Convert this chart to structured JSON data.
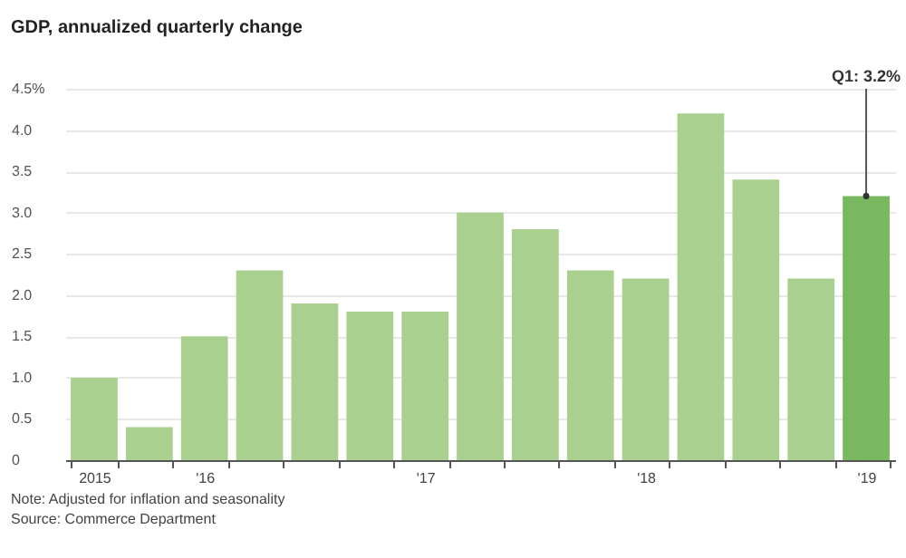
{
  "chart_data": {
    "type": "bar",
    "title": "GDP, annualized quarterly change",
    "categories": [
      "2015",
      null,
      "'16",
      null,
      null,
      null,
      "'17",
      null,
      null,
      null,
      "'18",
      null,
      null,
      null,
      "'19"
    ],
    "values": [
      1.0,
      0.4,
      1.5,
      2.3,
      1.9,
      1.8,
      1.8,
      3.0,
      2.8,
      2.3,
      2.2,
      4.2,
      3.4,
      2.2,
      3.2
    ],
    "colors": [
      "#a9d08e",
      "#a9d08e",
      "#a9d08e",
      "#a9d08e",
      "#a9d08e",
      "#a9d08e",
      "#a9d08e",
      "#a9d08e",
      "#a9d08e",
      "#a9d08e",
      "#a9d08e",
      "#a9d08e",
      "#a9d08e",
      "#a9d08e",
      "#78b85f"
    ],
    "ylim": [
      0,
      4.5
    ],
    "yticks": [
      0,
      0.5,
      {
        "value": 1,
        "label": "1.0"
      },
      1.5,
      {
        "value": 2,
        "label": "2.0"
      },
      2.5,
      {
        "value": 3,
        "label": "3.0"
      },
      3.5,
      {
        "value": 4,
        "label": "4.0"
      },
      {
        "value": 4.5,
        "label": "4.5%"
      }
    ],
    "grid": "y",
    "annotations": [
      {
        "text": "Q1: 3.2%",
        "x": "'19",
        "y": 3.2
      },
      "Note: Adjusted for inflation and seasonality",
      "Source: Commerce Department"
    ]
  }
}
